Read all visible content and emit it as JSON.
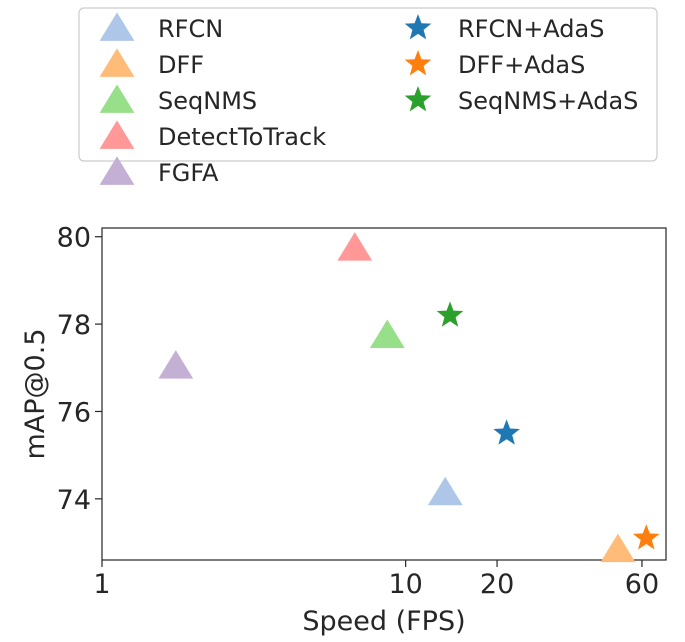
{
  "chart_data": {
    "type": "scatter",
    "xlabel": "Speed (FPS)",
    "ylabel": "mAP@0.5",
    "xscale": "log",
    "xlim": [
      1,
      72
    ],
    "ylim": [
      72.6,
      80.2
    ],
    "xticks": [
      1,
      10,
      20,
      60
    ],
    "xtick_labels": [
      "1",
      "10",
      "20",
      "60"
    ],
    "yticks": [
      74,
      76,
      78,
      80
    ],
    "ytick_labels": [
      "74",
      "76",
      "78",
      "80"
    ],
    "legend_position": "top (above plot)",
    "series": [
      {
        "name": "RFCN",
        "marker": "triangle",
        "color": "#aec7e8",
        "x": 13.5,
        "y": 74.1
      },
      {
        "name": "DFF",
        "marker": "triangle",
        "color": "#ffbb78",
        "x": 50,
        "y": 72.8
      },
      {
        "name": "SeqNMS",
        "marker": "triangle",
        "color": "#98df8a",
        "x": 8.7,
        "y": 77.7
      },
      {
        "name": "DetectToTrack",
        "marker": "triangle",
        "color": "#ff9896",
        "x": 6.8,
        "y": 79.7
      },
      {
        "name": "FGFA",
        "marker": "triangle",
        "color": "#c5b0d5",
        "x": 1.75,
        "y": 77.0
      },
      {
        "name": "RFCN+AdaS",
        "marker": "star",
        "color": "#1f77b4",
        "x": 21.5,
        "y": 75.5
      },
      {
        "name": "DFF+AdaS",
        "marker": "star",
        "color": "#ff7f0e",
        "x": 62,
        "y": 73.1
      },
      {
        "name": "SeqNMS+AdaS",
        "marker": "star",
        "color": "#2ca02c",
        "x": 14,
        "y": 78.2
      },
      {
        "name": "FGFA",
        "marker": "triangle",
        "color": "#c5b0d5",
        "x": 1.75,
        "y": 77.0,
        "legend_only": true
      }
    ],
    "legend_entries": [
      {
        "label": "RFCN",
        "marker": "triangle",
        "color": "#aec7e8"
      },
      {
        "label": "DFF",
        "marker": "triangle",
        "color": "#ffbb78"
      },
      {
        "label": "SeqNMS",
        "marker": "triangle",
        "color": "#98df8a"
      },
      {
        "label": "DetectToTrack",
        "marker": "triangle",
        "color": "#ff9896"
      },
      {
        "label": "FGFA",
        "marker": "triangle",
        "color": "#c5b0d5"
      },
      {
        "label": "RFCN+AdaS",
        "marker": "star",
        "color": "#1f77b4"
      },
      {
        "label": "DFF+AdaS",
        "marker": "star",
        "color": "#ff7f0e"
      },
      {
        "label": "SeqNMS+AdaS",
        "marker": "star",
        "color": "#2ca02c"
      }
    ]
  }
}
